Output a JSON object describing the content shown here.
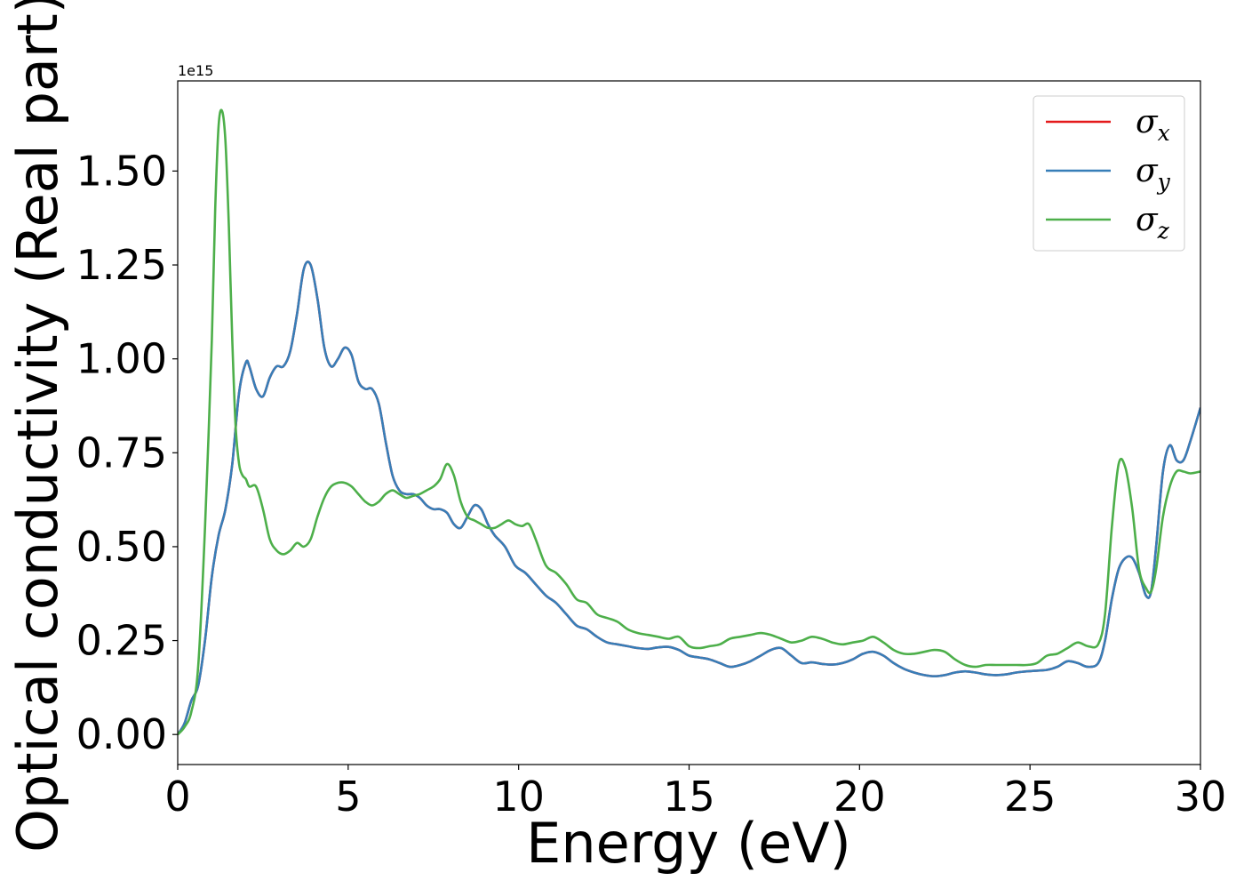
{
  "chart_data": {
    "type": "line",
    "title": "",
    "xlabel": "Energy (eV)",
    "ylabel": "Optical conductivity (Real part)",
    "y_offset_text": "1e15",
    "y_scale": 1000000000000000.0,
    "xlim": [
      0,
      30
    ],
    "ylim": [
      -0.08,
      1.74
    ],
    "xticks": [
      0,
      5,
      10,
      15,
      20,
      25,
      30
    ],
    "xtick_labels": [
      "0",
      "5",
      "10",
      "15",
      "20",
      "25",
      "30"
    ],
    "yticks": [
      0,
      0.25,
      0.5,
      0.75,
      1.0,
      1.25,
      1.5
    ],
    "ytick_labels": [
      "0.00",
      "0.25",
      "0.50",
      "0.75",
      "1.00",
      "1.25",
      "1.50"
    ],
    "grid": false,
    "legend": {
      "position": "top-right",
      "entries": [
        {
          "symbol": "σ",
          "subscript": "x",
          "color": "#e41a1c"
        },
        {
          "symbol": "σ",
          "subscript": "y",
          "color": "#377eb8"
        },
        {
          "symbol": "σ",
          "subscript": "z",
          "color": "#4daf4a"
        }
      ]
    },
    "series": [
      {
        "color": "#e41a1c",
        "x": [
          0,
          0.2,
          0.4,
          0.6,
          0.8,
          1.0,
          1.2,
          1.4,
          1.6,
          1.8,
          2.0,
          2.1,
          2.3,
          2.5,
          2.7,
          2.9,
          3.1,
          3.3,
          3.5,
          3.7,
          3.9,
          4.1,
          4.3,
          4.5,
          4.7,
          4.9,
          5.1,
          5.3,
          5.5,
          5.7,
          5.9,
          6.1,
          6.3,
          6.5,
          6.7,
          6.9,
          7.1,
          7.3,
          7.5,
          7.7,
          7.9,
          8.1,
          8.3,
          8.5,
          8.7,
          8.9,
          9.1,
          9.3,
          9.6,
          9.9,
          10.2,
          10.5,
          10.8,
          11.1,
          11.4,
          11.7,
          12.0,
          12.3,
          12.6,
          12.9,
          13.2,
          13.5,
          13.8,
          14.1,
          14.4,
          14.7,
          15.0,
          15.3,
          15.6,
          15.9,
          16.2,
          16.5,
          16.8,
          17.1,
          17.4,
          17.7,
          18.0,
          18.3,
          18.6,
          18.9,
          19.2,
          19.5,
          19.8,
          20.1,
          20.4,
          20.7,
          21.0,
          21.3,
          21.6,
          21.9,
          22.2,
          22.5,
          22.8,
          23.1,
          23.4,
          23.7,
          24.0,
          24.3,
          24.6,
          24.9,
          25.2,
          25.5,
          25.8,
          26.1,
          26.4,
          26.7,
          27.0,
          27.2,
          27.4,
          27.6,
          27.8,
          28.0,
          28.2,
          28.4,
          28.55,
          28.7,
          28.9,
          29.1,
          29.3,
          29.5,
          29.7,
          30.0
        ],
        "y": [
          0.0,
          0.03,
          0.09,
          0.13,
          0.25,
          0.42,
          0.53,
          0.6,
          0.72,
          0.91,
          0.99,
          0.98,
          0.92,
          0.9,
          0.95,
          0.98,
          0.98,
          1.02,
          1.12,
          1.24,
          1.25,
          1.16,
          1.03,
          0.98,
          1.0,
          1.03,
          1.01,
          0.94,
          0.92,
          0.92,
          0.88,
          0.78,
          0.69,
          0.65,
          0.64,
          0.64,
          0.63,
          0.61,
          0.6,
          0.6,
          0.59,
          0.56,
          0.55,
          0.58,
          0.61,
          0.6,
          0.56,
          0.53,
          0.5,
          0.45,
          0.43,
          0.4,
          0.37,
          0.35,
          0.32,
          0.29,
          0.28,
          0.26,
          0.245,
          0.24,
          0.235,
          0.23,
          0.228,
          0.232,
          0.233,
          0.225,
          0.21,
          0.205,
          0.2,
          0.19,
          0.18,
          0.185,
          0.195,
          0.21,
          0.225,
          0.23,
          0.21,
          0.19,
          0.192,
          0.188,
          0.186,
          0.19,
          0.2,
          0.215,
          0.22,
          0.21,
          0.19,
          0.175,
          0.165,
          0.158,
          0.155,
          0.158,
          0.165,
          0.168,
          0.165,
          0.16,
          0.158,
          0.16,
          0.165,
          0.168,
          0.17,
          0.172,
          0.18,
          0.195,
          0.19,
          0.18,
          0.19,
          0.25,
          0.36,
          0.44,
          0.47,
          0.47,
          0.43,
          0.37,
          0.38,
          0.5,
          0.7,
          0.77,
          0.73,
          0.73,
          0.78,
          0.87
        ]
      },
      {
        "color": "#377eb8",
        "x": [
          0,
          0.2,
          0.4,
          0.6,
          0.8,
          1.0,
          1.2,
          1.4,
          1.6,
          1.8,
          2.0,
          2.1,
          2.3,
          2.5,
          2.7,
          2.9,
          3.1,
          3.3,
          3.5,
          3.7,
          3.9,
          4.1,
          4.3,
          4.5,
          4.7,
          4.9,
          5.1,
          5.3,
          5.5,
          5.7,
          5.9,
          6.1,
          6.3,
          6.5,
          6.7,
          6.9,
          7.1,
          7.3,
          7.5,
          7.7,
          7.9,
          8.1,
          8.3,
          8.5,
          8.7,
          8.9,
          9.1,
          9.3,
          9.6,
          9.9,
          10.2,
          10.5,
          10.8,
          11.1,
          11.4,
          11.7,
          12.0,
          12.3,
          12.6,
          12.9,
          13.2,
          13.5,
          13.8,
          14.1,
          14.4,
          14.7,
          15.0,
          15.3,
          15.6,
          15.9,
          16.2,
          16.5,
          16.8,
          17.1,
          17.4,
          17.7,
          18.0,
          18.3,
          18.6,
          18.9,
          19.2,
          19.5,
          19.8,
          20.1,
          20.4,
          20.7,
          21.0,
          21.3,
          21.6,
          21.9,
          22.2,
          22.5,
          22.8,
          23.1,
          23.4,
          23.7,
          24.0,
          24.3,
          24.6,
          24.9,
          25.2,
          25.5,
          25.8,
          26.1,
          26.4,
          26.7,
          27.0,
          27.2,
          27.4,
          27.6,
          27.8,
          28.0,
          28.2,
          28.4,
          28.55,
          28.7,
          28.9,
          29.1,
          29.3,
          29.5,
          29.7,
          30.0
        ],
        "y": [
          0.0,
          0.03,
          0.09,
          0.13,
          0.25,
          0.42,
          0.53,
          0.6,
          0.72,
          0.91,
          0.99,
          0.98,
          0.92,
          0.9,
          0.95,
          0.98,
          0.98,
          1.02,
          1.12,
          1.24,
          1.25,
          1.16,
          1.03,
          0.98,
          1.0,
          1.03,
          1.01,
          0.94,
          0.92,
          0.92,
          0.88,
          0.78,
          0.69,
          0.65,
          0.64,
          0.64,
          0.63,
          0.61,
          0.6,
          0.6,
          0.59,
          0.56,
          0.55,
          0.58,
          0.61,
          0.6,
          0.56,
          0.53,
          0.5,
          0.45,
          0.43,
          0.4,
          0.37,
          0.35,
          0.32,
          0.29,
          0.28,
          0.26,
          0.245,
          0.24,
          0.235,
          0.23,
          0.228,
          0.232,
          0.233,
          0.225,
          0.21,
          0.205,
          0.2,
          0.19,
          0.18,
          0.185,
          0.195,
          0.21,
          0.225,
          0.23,
          0.21,
          0.19,
          0.192,
          0.188,
          0.186,
          0.19,
          0.2,
          0.215,
          0.22,
          0.21,
          0.19,
          0.175,
          0.165,
          0.158,
          0.155,
          0.158,
          0.165,
          0.168,
          0.165,
          0.16,
          0.158,
          0.16,
          0.165,
          0.168,
          0.17,
          0.172,
          0.18,
          0.195,
          0.19,
          0.18,
          0.19,
          0.25,
          0.36,
          0.44,
          0.47,
          0.47,
          0.43,
          0.37,
          0.38,
          0.5,
          0.7,
          0.77,
          0.73,
          0.73,
          0.78,
          0.87
        ]
      },
      {
        "color": "#4daf4a",
        "x": [
          0,
          0.2,
          0.4,
          0.6,
          0.8,
          1.0,
          1.1,
          1.2,
          1.3,
          1.4,
          1.5,
          1.6,
          1.7,
          1.8,
          1.9,
          2.0,
          2.1,
          2.3,
          2.5,
          2.7,
          2.9,
          3.1,
          3.3,
          3.5,
          3.7,
          3.9,
          4.1,
          4.3,
          4.5,
          4.7,
          4.9,
          5.1,
          5.3,
          5.5,
          5.7,
          5.9,
          6.1,
          6.3,
          6.5,
          6.7,
          6.9,
          7.1,
          7.3,
          7.5,
          7.7,
          7.9,
          8.1,
          8.3,
          8.5,
          8.7,
          8.9,
          9.1,
          9.3,
          9.5,
          9.7,
          9.9,
          10.1,
          10.3,
          10.5,
          10.8,
          11.1,
          11.4,
          11.7,
          12.0,
          12.3,
          12.6,
          12.9,
          13.2,
          13.5,
          13.8,
          14.1,
          14.4,
          14.7,
          15.0,
          15.3,
          15.6,
          15.9,
          16.2,
          16.5,
          16.8,
          17.1,
          17.4,
          17.7,
          18.0,
          18.3,
          18.6,
          18.9,
          19.2,
          19.5,
          19.8,
          20.1,
          20.4,
          20.7,
          21.0,
          21.3,
          21.6,
          21.9,
          22.2,
          22.5,
          22.8,
          23.1,
          23.4,
          23.7,
          24.0,
          24.3,
          24.6,
          24.9,
          25.2,
          25.5,
          25.8,
          26.1,
          26.4,
          26.7,
          27.0,
          27.2,
          27.4,
          27.6,
          27.8,
          28.0,
          28.2,
          28.4,
          28.55,
          28.7,
          28.9,
          29.1,
          29.3,
          29.5,
          29.7,
          30.0
        ],
        "y": [
          0.0,
          0.02,
          0.06,
          0.18,
          0.55,
          1.05,
          1.4,
          1.62,
          1.66,
          1.58,
          1.35,
          1.05,
          0.82,
          0.72,
          0.69,
          0.68,
          0.66,
          0.66,
          0.6,
          0.52,
          0.49,
          0.48,
          0.49,
          0.51,
          0.5,
          0.52,
          0.58,
          0.63,
          0.66,
          0.67,
          0.67,
          0.66,
          0.64,
          0.62,
          0.61,
          0.62,
          0.64,
          0.65,
          0.64,
          0.63,
          0.635,
          0.64,
          0.65,
          0.66,
          0.68,
          0.72,
          0.69,
          0.62,
          0.58,
          0.57,
          0.56,
          0.55,
          0.55,
          0.56,
          0.57,
          0.56,
          0.555,
          0.56,
          0.52,
          0.45,
          0.43,
          0.4,
          0.36,
          0.35,
          0.32,
          0.31,
          0.3,
          0.28,
          0.27,
          0.265,
          0.26,
          0.255,
          0.26,
          0.235,
          0.23,
          0.235,
          0.24,
          0.255,
          0.26,
          0.265,
          0.27,
          0.265,
          0.255,
          0.245,
          0.25,
          0.26,
          0.255,
          0.245,
          0.24,
          0.245,
          0.25,
          0.26,
          0.245,
          0.225,
          0.215,
          0.215,
          0.22,
          0.225,
          0.22,
          0.2,
          0.185,
          0.18,
          0.185,
          0.185,
          0.185,
          0.185,
          0.185,
          0.19,
          0.21,
          0.215,
          0.23,
          0.245,
          0.235,
          0.24,
          0.32,
          0.55,
          0.72,
          0.71,
          0.6,
          0.44,
          0.39,
          0.38,
          0.44,
          0.58,
          0.66,
          0.7,
          0.7,
          0.695,
          0.7
        ]
      }
    ]
  }
}
